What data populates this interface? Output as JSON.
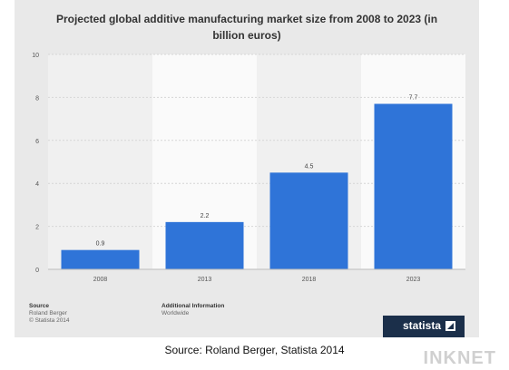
{
  "chart_data": {
    "type": "bar",
    "title": "Projected global additive manufacturing market size from 2008 to 2023 (in billion euros)",
    "categories": [
      "2008",
      "2013",
      "2018",
      "2023"
    ],
    "values": [
      0.9,
      2.2,
      4.5,
      7.7
    ],
    "data_labels": [
      "0.9",
      "2.2",
      "4.5",
      "7.7"
    ],
    "yticks": [
      "0",
      "2",
      "4",
      "6",
      "8",
      "10"
    ],
    "ylim": [
      0,
      10
    ],
    "grid": true,
    "bar_color": "#2f74d8"
  },
  "footer": {
    "source_heading": "Source",
    "source_lines": [
      "Roland Berger",
      "© Statista 2014"
    ],
    "info_heading": "Additional Information",
    "info_lines": [
      "Worldwide"
    ]
  },
  "brand": {
    "name": "statista",
    "bg_color": "#1b2f4a"
  },
  "caption": "Source: Roland Berger, Statista 2014",
  "watermark": "INKNET"
}
